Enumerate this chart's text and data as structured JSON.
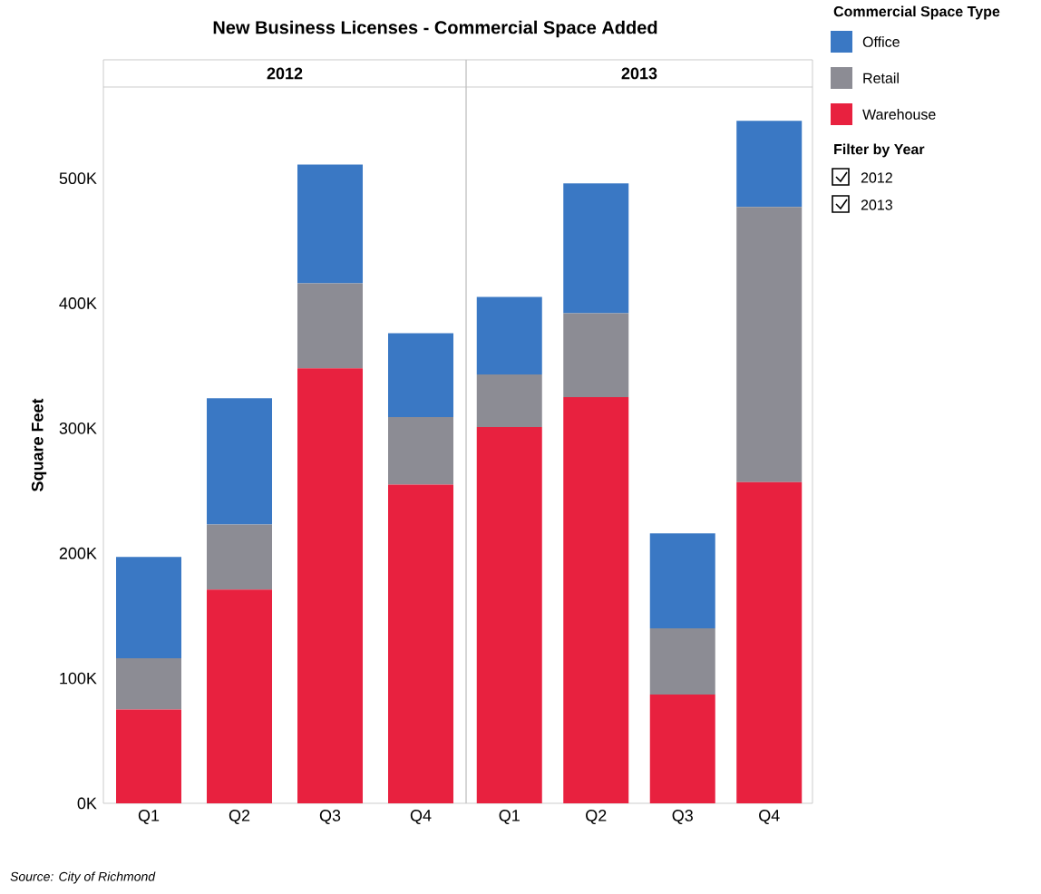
{
  "chart_data": [
    {
      "type": "bar",
      "title": "New Business Licenses - Commercial Space Added",
      "subtitle": "2012",
      "ylabel": "Square Feet",
      "stacked": true,
      "categories": [
        "Q1",
        "Q2",
        "Q3",
        "Q4"
      ],
      "series": [
        {
          "color": "#e8213f",
          "values": [
            75000,
            171000,
            348000,
            255000
          ]
        },
        {
          "color": "#8c8c94",
          "values": [
            41000,
            52000,
            68000,
            54000
          ]
        },
        {
          "color": "#3a78c4",
          "values": [
            81000,
            101000,
            95000,
            67000
          ]
        }
      ],
      "ylim": [
        0,
        573000
      ],
      "yticks": [
        {
          "value": 0,
          "label": "0K"
        },
        {
          "value": 100000,
          "label": "100K"
        },
        {
          "value": 200000,
          "label": "200K"
        },
        {
          "value": 300000,
          "label": "300K"
        },
        {
          "value": 400000,
          "label": "400K"
        },
        {
          "value": 500000,
          "label": "500K"
        }
      ],
      "annotations": [
        "Source: City of Richmond"
      ]
    },
    {
      "type": "bar",
      "subtitle": "2013",
      "stacked": true,
      "legend": "top right",
      "legend_title": "Commercial Space Type",
      "tick_labels": "x",
      "categories": [
        "Q1",
        "Q2",
        "Q3",
        "Q4"
      ],
      "series": [
        {
          "name": "Warehouse",
          "color": "#e8213f",
          "values": [
            301000,
            325000,
            87000,
            257000
          ]
        },
        {
          "name": "Retail",
          "color": "#8c8c94",
          "values": [
            42000,
            67000,
            53000,
            220000
          ]
        },
        {
          "name": "Office",
          "color": "#3a78c4",
          "values": [
            62000,
            104000,
            76000,
            69000
          ]
        }
      ],
      "ylim": [
        0,
        573000
      ],
      "annotations": [
        "Filter by Year",
        "2012",
        "2013"
      ]
    }
  ]
}
